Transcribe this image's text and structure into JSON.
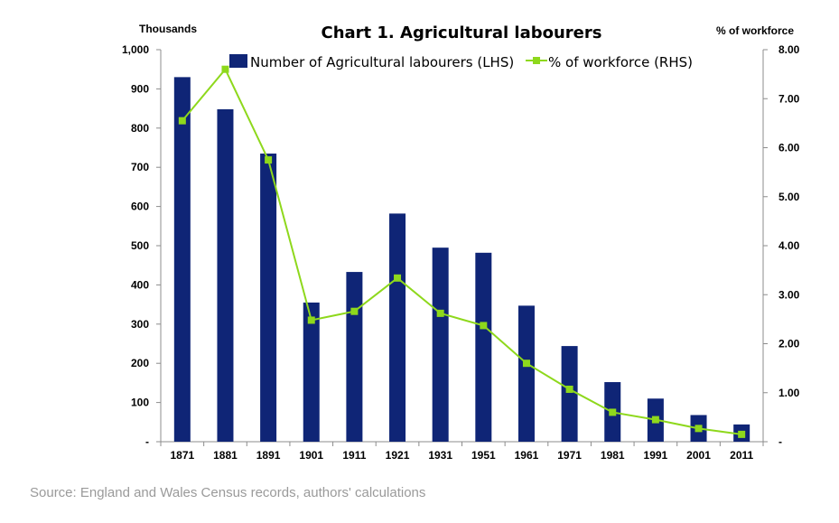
{
  "chart_data": {
    "type": "bar",
    "title": "Chart 1. Agricultural labourers",
    "ylabel_left": "Thousands",
    "ylabel_right": "% of workforce",
    "categories": [
      "1871",
      "1881",
      "1891",
      "1901",
      "1911",
      "1921",
      "1931",
      "1951",
      "1961",
      "1971",
      "1981",
      "1991",
      "2001",
      "2011"
    ],
    "y_left_ticks": [
      "-",
      "100",
      "200",
      "300",
      "400",
      "500",
      "600",
      "700",
      "800",
      "900",
      "1,000"
    ],
    "y_right_ticks": [
      "-",
      "1.00",
      "2.00",
      "3.00",
      "4.00",
      "5.00",
      "6.00",
      "7.00",
      "8.00"
    ],
    "ylim_left": [
      0,
      1000
    ],
    "ylim_right": [
      0,
      8
    ],
    "series": [
      {
        "name": "Number of Agricultural labourers (LHS)",
        "type": "bar",
        "axis": "left",
        "color": "#0f2576",
        "values": [
          930,
          848,
          735,
          355,
          433,
          582,
          495,
          482,
          347,
          244,
          152,
          110,
          68,
          44
        ]
      },
      {
        "name": "% of workforce (RHS)",
        "type": "line",
        "axis": "right",
        "color": "#8ed81c",
        "values": [
          6.55,
          7.6,
          5.75,
          2.48,
          2.66,
          3.34,
          2.62,
          2.37,
          1.6,
          1.07,
          0.6,
          0.45,
          0.27,
          0.15
        ]
      }
    ],
    "legend_position": "top",
    "grid": false,
    "source": "Source: England and Wales Census records, authors' calculations"
  }
}
